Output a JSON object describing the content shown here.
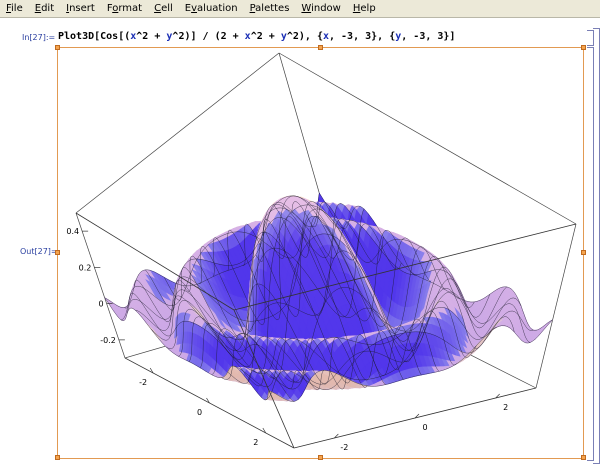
{
  "menu": [
    {
      "label": "File",
      "ul": "F"
    },
    {
      "label": "Edit",
      "ul": "E"
    },
    {
      "label": "Insert",
      "ul": "I"
    },
    {
      "label": "Format",
      "ul": "o"
    },
    {
      "label": "Cell",
      "ul": "C"
    },
    {
      "label": "Evaluation",
      "ul": "v"
    },
    {
      "label": "Palettes",
      "ul": "P"
    },
    {
      "label": "Window",
      "ul": "W"
    },
    {
      "label": "Help",
      "ul": "H"
    }
  ],
  "notebook": {
    "in_label": "In[27]:=",
    "out_label": "Out[27]=",
    "input_parts": [
      {
        "t": "Plot3D[Cos[(",
        "v": false
      },
      {
        "t": "x",
        "v": true
      },
      {
        "t": "^2 + ",
        "v": false
      },
      {
        "t": "y",
        "v": true
      },
      {
        "t": "^2)] / (2 + ",
        "v": false
      },
      {
        "t": "x",
        "v": true
      },
      {
        "t": "^2 + ",
        "v": false
      },
      {
        "t": "y",
        "v": true
      },
      {
        "t": "^2), {",
        "v": false
      },
      {
        "t": "x",
        "v": true
      },
      {
        "t": ", -3, 3}, {",
        "v": false
      },
      {
        "t": "y",
        "v": true
      },
      {
        "t": ", -3, 3}]",
        "v": false
      }
    ]
  },
  "plot": {
    "z_ticks": [
      "0.4",
      "0.2",
      "0",
      "-0.2"
    ],
    "x_ticks": [
      "-2",
      "0",
      "2"
    ],
    "y_ticks": [
      "-2",
      "0",
      "2"
    ],
    "colors": {
      "frame": "#e29a52",
      "handle": "#f5a44e",
      "label": "#2a3fa0",
      "mesh": "#1a1a2a"
    }
  },
  "chart_data": {
    "type": "surface",
    "function": "Cos[(x^2 + y^2)] / (2 + x^2 + y^2)",
    "x_range": [
      -3,
      3
    ],
    "y_range": [
      -3,
      3
    ],
    "z_range": [
      -0.3,
      0.5
    ],
    "z_ticks": [
      0.4,
      0.2,
      0,
      -0.2
    ],
    "x_ticks": [
      -2,
      0,
      2
    ],
    "y_ticks": [
      -2,
      0,
      2
    ],
    "mesh": 15
  }
}
